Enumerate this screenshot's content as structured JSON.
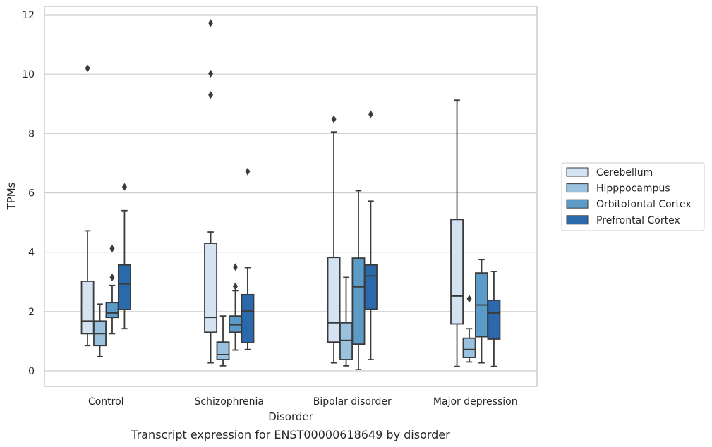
{
  "caption": "Transcript expression for ENST00000618649 by disorder",
  "chart_data": {
    "type": "box",
    "xlabel": "Disorder",
    "ylabel": "TPMs",
    "ylim": [
      -0.5,
      12.3
    ],
    "yticks": [
      0,
      2,
      4,
      6,
      8,
      10,
      12
    ],
    "grid": "horizontal",
    "legend_position": "right",
    "categories": [
      "Control",
      "Schizophrenia",
      "Bipolar disorder",
      "Major depression"
    ],
    "series": [
      {
        "name": "Cerebellum",
        "color": "#d3e3f2",
        "boxes": [
          {
            "whisker_low": 0.85,
            "q1": 1.25,
            "median": 1.68,
            "q3": 3.02,
            "whisker_high": 4.72,
            "outliers": [
              10.2
            ]
          },
          {
            "whisker_low": 0.27,
            "q1": 1.3,
            "median": 1.8,
            "q3": 4.3,
            "whisker_high": 4.68,
            "outliers": [
              11.72,
              10.02,
              9.3
            ]
          },
          {
            "whisker_low": 0.27,
            "q1": 0.97,
            "median": 1.62,
            "q3": 3.82,
            "whisker_high": 8.05,
            "outliers": [
              8.48
            ]
          },
          {
            "whisker_low": 0.15,
            "q1": 1.58,
            "median": 2.52,
            "q3": 5.1,
            "whisker_high": 9.12,
            "outliers": []
          }
        ]
      },
      {
        "name": "Hipppocampus",
        "color": "#9ac1dd",
        "boxes": [
          {
            "whisker_low": 0.48,
            "q1": 0.85,
            "median": 1.25,
            "q3": 1.68,
            "whisker_high": 2.25,
            "outliers": []
          },
          {
            "whisker_low": 0.17,
            "q1": 0.38,
            "median": 0.55,
            "q3": 0.97,
            "whisker_high": 1.85,
            "outliers": []
          },
          {
            "whisker_low": 0.17,
            "q1": 0.38,
            "median": 1.03,
            "q3": 1.62,
            "whisker_high": 3.15,
            "outliers": []
          },
          {
            "whisker_low": 0.3,
            "q1": 0.45,
            "median": 0.72,
            "q3": 1.1,
            "whisker_high": 1.42,
            "outliers": [
              2.43
            ]
          }
        ]
      },
      {
        "name": "Orbitofontal Cortex",
        "color": "#5b9bc8",
        "boxes": [
          {
            "whisker_low": 1.25,
            "q1": 1.8,
            "median": 1.95,
            "q3": 2.3,
            "whisker_high": 2.88,
            "outliers": [
              4.12,
              3.15
            ]
          },
          {
            "whisker_low": 0.7,
            "q1": 1.3,
            "median": 1.55,
            "q3": 1.85,
            "whisker_high": 2.7,
            "outliers": [
              3.5,
              2.85
            ]
          },
          {
            "whisker_low": 0.05,
            "q1": 0.9,
            "median": 2.83,
            "q3": 3.8,
            "whisker_high": 6.07,
            "outliers": []
          },
          {
            "whisker_low": 0.27,
            "q1": 1.15,
            "median": 2.22,
            "q3": 3.3,
            "whisker_high": 3.75,
            "outliers": []
          }
        ]
      },
      {
        "name": "Prefrontal Cortex",
        "color": "#2a6aac",
        "boxes": [
          {
            "whisker_low": 1.42,
            "q1": 2.07,
            "median": 2.93,
            "q3": 3.57,
            "whisker_high": 5.4,
            "outliers": [
              6.2
            ]
          },
          {
            "whisker_low": 0.72,
            "q1": 0.95,
            "median": 2.02,
            "q3": 2.57,
            "whisker_high": 3.48,
            "outliers": [
              6.72
            ]
          },
          {
            "whisker_low": 0.38,
            "q1": 2.08,
            "median": 3.2,
            "q3": 3.57,
            "whisker_high": 5.72,
            "outliers": [
              8.65
            ]
          },
          {
            "whisker_low": 0.15,
            "q1": 1.07,
            "median": 1.95,
            "q3": 2.38,
            "whisker_high": 3.35,
            "outliers": []
          }
        ]
      }
    ]
  }
}
